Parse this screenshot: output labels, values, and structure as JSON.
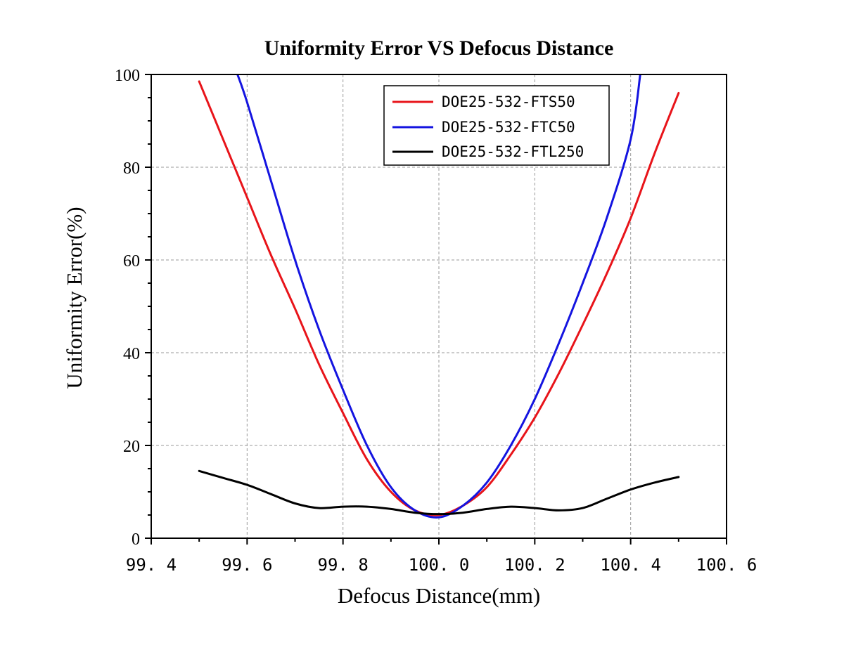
{
  "chart_data": {
    "type": "line",
    "title": "Uniformity Error VS Defocus Distance",
    "xlabel": "Defocus Distance(mm)",
    "ylabel": "Uniformity Error(%)",
    "xlim": [
      99.4,
      100.6
    ],
    "ylim": [
      0,
      100
    ],
    "x_ticks": [
      99.4,
      99.6,
      99.8,
      100.0,
      100.2,
      100.4,
      100.6
    ],
    "x_tick_labels": [
      "99. 4",
      "99. 6",
      "99. 8",
      "100. 0",
      "100. 2",
      "100. 4",
      "100. 6"
    ],
    "y_ticks": [
      0,
      20,
      40,
      60,
      80,
      100
    ],
    "y_tick_labels": [
      "0",
      "20",
      "40",
      "60",
      "80",
      "100"
    ],
    "grid": true,
    "legend_position": "top-right",
    "series": [
      {
        "name": "DOE25-532-FTS50",
        "color": "#e8141a",
        "x": [
          99.5,
          99.55,
          99.6,
          99.65,
          99.7,
          99.75,
          99.8,
          99.85,
          99.9,
          99.95,
          100.0,
          100.05,
          100.1,
          100.15,
          100.2,
          100.25,
          100.3,
          100.35,
          100.4,
          100.45,
          100.5
        ],
        "y": [
          98.5,
          86,
          73.5,
          61,
          49.5,
          37.5,
          27,
          17,
          10,
          6,
          5,
          7,
          11,
          18,
          26,
          35.5,
          46,
          57,
          69,
          83,
          96
        ]
      },
      {
        "name": "DOE25-532-FTC50",
        "color": "#1414e0",
        "x": [
          99.58,
          99.6,
          99.65,
          99.7,
          99.75,
          99.8,
          99.85,
          99.9,
          99.95,
          100.0,
          100.05,
          100.1,
          100.15,
          100.2,
          100.25,
          100.3,
          100.35,
          100.4,
          100.42
        ],
        "y": [
          100,
          94,
          77,
          60,
          45,
          32,
          20,
          11,
          6,
          4.5,
          7,
          12,
          20,
          30,
          42,
          55,
          69,
          86,
          100
        ]
      },
      {
        "name": "DOE25-532-FTL250",
        "color": "#000000",
        "x": [
          99.5,
          99.55,
          99.6,
          99.65,
          99.7,
          99.75,
          99.8,
          99.85,
          99.9,
          99.95,
          100.0,
          100.05,
          100.1,
          100.15,
          100.2,
          100.25,
          100.3,
          100.35,
          100.4,
          100.45,
          100.5
        ],
        "y": [
          14.5,
          13,
          11.5,
          9.5,
          7.5,
          6.5,
          6.8,
          6.8,
          6.3,
          5.5,
          5.2,
          5.5,
          6.3,
          6.8,
          6.5,
          6.0,
          6.5,
          8.5,
          10.5,
          12,
          13.2
        ]
      }
    ]
  }
}
